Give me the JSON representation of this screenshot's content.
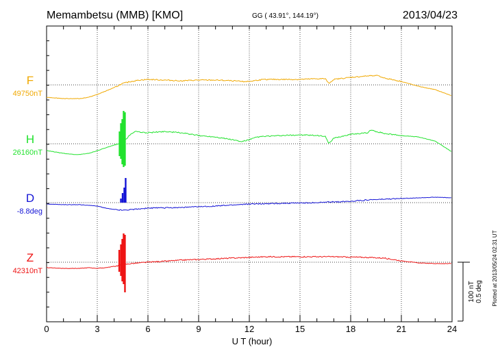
{
  "header": {
    "station": "Memambetsu (MMB)  [KMO]",
    "coords": "GG ( 43.91°, 144.19°)",
    "date": "2013/04/23"
  },
  "footer": {
    "plotted_at": "Plotted at 2013/05/24 02:31  UT"
  },
  "chart_data": {
    "type": "line",
    "xlabel": "U T (hour)",
    "xlim": [
      0,
      24
    ],
    "xticks": [
      "0",
      "3",
      "6",
      "9",
      "12",
      "15",
      "18",
      "21",
      "24"
    ],
    "scale_bar": {
      "label_nT": "100 nT",
      "label_deg": "0.5 deg"
    },
    "series": [
      {
        "name": "F",
        "baseline_label": "49750nT",
        "color": "#f0a800",
        "x": [
          0,
          1,
          2,
          2.5,
          3,
          3.5,
          4,
          4.5,
          5,
          5.5,
          6,
          7,
          8,
          9,
          10,
          11,
          11.5,
          12,
          12.5,
          13,
          14,
          15,
          16,
          16.5,
          16.7,
          17,
          18,
          19,
          19.5,
          20,
          21,
          22,
          23,
          24
        ],
        "y": [
          -18,
          -20,
          -20,
          -18,
          -14,
          -9,
          -4,
          2,
          5,
          7,
          8,
          7,
          6,
          7,
          7,
          6,
          5,
          5,
          7,
          8,
          8,
          8,
          9,
          9,
          2,
          8,
          11,
          13,
          14,
          10,
          5,
          -2,
          -7,
          -16
        ]
      },
      {
        "name": "H",
        "baseline_label": "26160nT",
        "color": "#22e22e",
        "x": [
          0,
          1,
          1.8,
          2.5,
          3,
          3.5,
          4,
          4.4,
          4.6,
          4.9,
          5.2,
          5.5,
          6,
          7,
          8,
          9,
          10,
          11,
          11.5,
          12,
          12.5,
          13,
          14,
          15,
          16,
          16.5,
          16.7,
          17,
          18,
          19,
          19.2,
          19.5,
          20,
          21,
          22,
          23,
          24
        ],
        "y": [
          -10,
          -14,
          -16,
          -14,
          -10,
          -6,
          -2,
          2,
          4,
          12,
          18,
          17,
          16,
          18,
          16,
          12,
          10,
          6,
          3,
          6,
          10,
          11,
          12,
          13,
          12,
          11,
          0,
          8,
          14,
          16,
          20,
          18,
          15,
          12,
          10,
          4,
          -12
        ]
      },
      {
        "name": "D",
        "baseline_label": "-8.8deg",
        "color": "#1414d6",
        "x": [
          0,
          1,
          2,
          2.5,
          3,
          3.5,
          4,
          4.5,
          5,
          6,
          8,
          10,
          12,
          14,
          16,
          18,
          19,
          20,
          21,
          22,
          23,
          24
        ],
        "y": [
          -2,
          -3,
          -3,
          -4,
          -5,
          -8,
          -10,
          -11,
          -10,
          -8,
          -7,
          -5,
          -2,
          -1,
          0,
          2,
          4,
          5,
          6,
          7,
          8,
          7
        ]
      },
      {
        "name": "Z",
        "baseline_label": "42310nT",
        "color": "#ee1414",
        "x": [
          0,
          1,
          2,
          2.5,
          3,
          3.5,
          4,
          4.5,
          5,
          6,
          8,
          10,
          12,
          13,
          15,
          17,
          19,
          20,
          21,
          22,
          23,
          24
        ],
        "y": [
          -8,
          -9,
          -9,
          -8,
          -9,
          -8,
          -6,
          -4,
          -2,
          0,
          3,
          5,
          7,
          8,
          8,
          8,
          7,
          6,
          2,
          -1,
          -2,
          -2
        ]
      }
    ],
    "disturbance": {
      "description_hour": [
        4.4,
        4.6
      ],
      "H": {
        "x": [
          4.32,
          4.4,
          4.48,
          4.56,
          4.64
        ],
        "up": [
          18,
          30,
          36,
          48,
          46
        ],
        "down": [
          18,
          22,
          30,
          34,
          32
        ]
      },
      "D": {
        "x": [
          4.4,
          4.5,
          4.6,
          4.68
        ],
        "up": [
          6,
          14,
          22,
          36
        ],
        "down": [
          0,
          0,
          0,
          0
        ]
      },
      "Z": {
        "x": [
          4.3,
          4.4,
          4.48,
          4.56,
          4.64
        ],
        "up": [
          18,
          26,
          34,
          42,
          40
        ],
        "down": [
          14,
          20,
          28,
          32,
          44
        ]
      }
    }
  }
}
